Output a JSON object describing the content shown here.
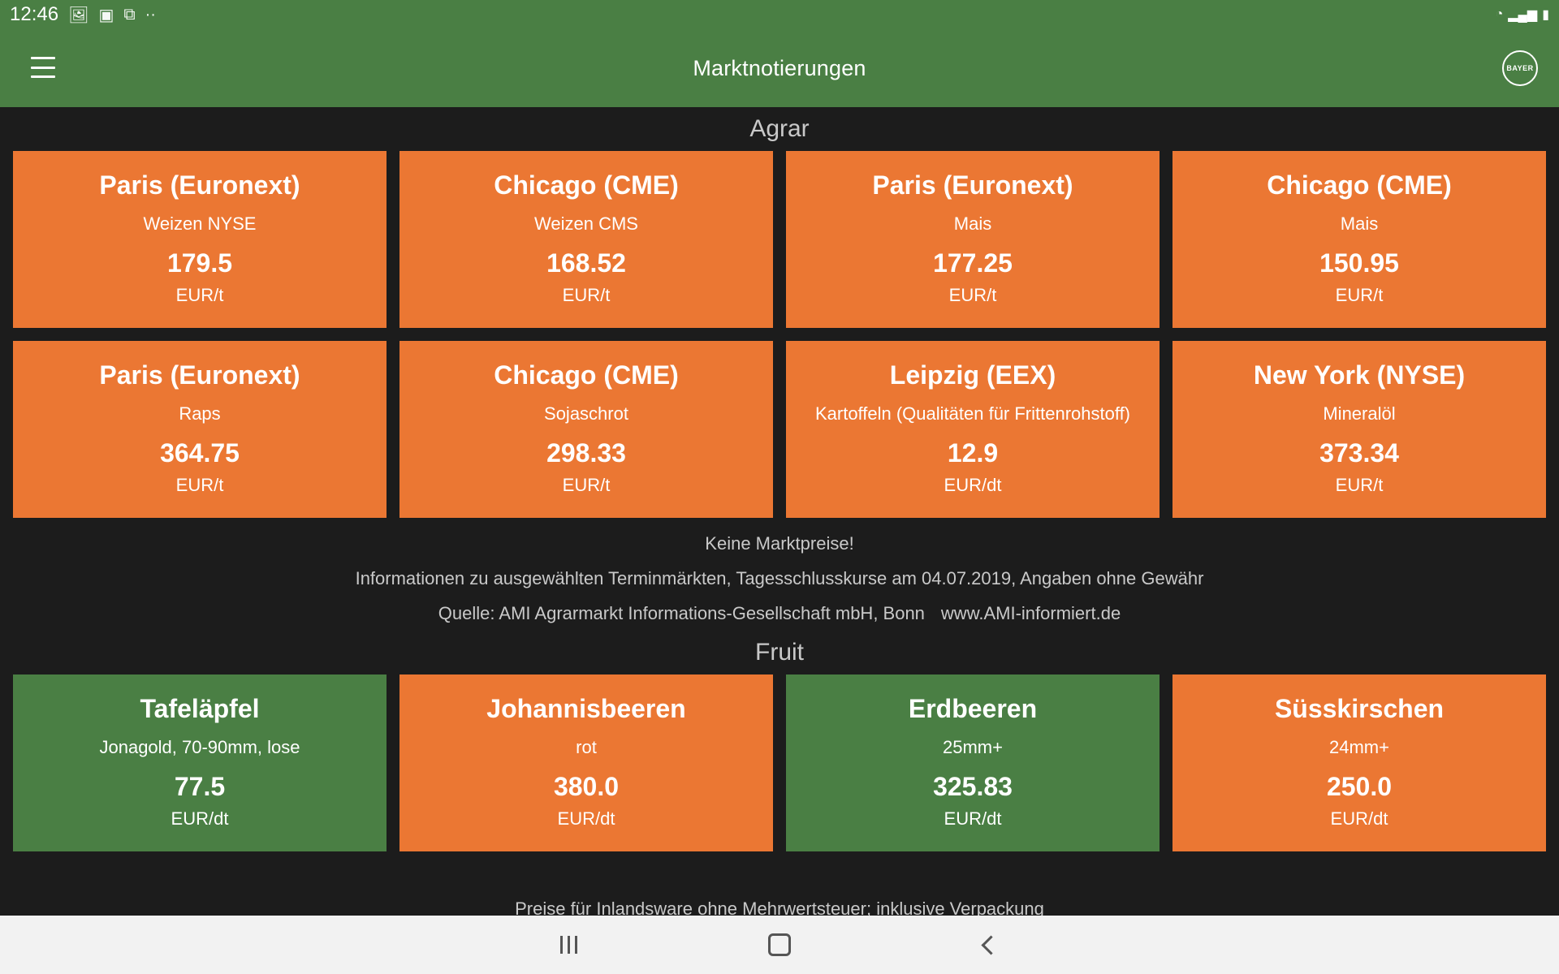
{
  "status_bar": {
    "time": "12:46",
    "icons": [
      "image-icon",
      "photo-icon",
      "screenshot-icon",
      "more-dots-icon"
    ],
    "right_icons": [
      "wifi-icon",
      "signal-icon",
      "battery-icon"
    ]
  },
  "toolbar": {
    "title": "Marktnotierungen",
    "logo_text": "BAYER"
  },
  "colors": {
    "green": "#4a7f44",
    "orange": "#eb7733",
    "background": "#1c1c1c"
  },
  "agrar": {
    "title": "Agrar",
    "cards": [
      {
        "market": "Paris (Euronext)",
        "product": "Weizen NYSE",
        "price": "179.5",
        "unit": "EUR/t",
        "color": "orange"
      },
      {
        "market": "Chicago (CME)",
        "product": "Weizen CMS",
        "price": "168.52",
        "unit": "EUR/t",
        "color": "orange"
      },
      {
        "market": "Paris (Euronext)",
        "product": "Mais",
        "price": "177.25",
        "unit": "EUR/t",
        "color": "orange"
      },
      {
        "market": "Chicago (CME)",
        "product": "Mais",
        "price": "150.95",
        "unit": "EUR/t",
        "color": "orange"
      },
      {
        "market": "Paris (Euronext)",
        "product": "Raps",
        "price": "364.75",
        "unit": "EUR/t",
        "color": "orange"
      },
      {
        "market": "Chicago (CME)",
        "product": "Sojaschrot",
        "price": "298.33",
        "unit": "EUR/t",
        "color": "orange"
      },
      {
        "market": "Leipzig (EEX)",
        "product": "Kartoffeln (Qualitäten für Frittenrohstoff)",
        "price": "12.9",
        "unit": "EUR/dt",
        "color": "orange"
      },
      {
        "market": "New York (NYSE)",
        "product": "Mineralöl",
        "price": "373.34",
        "unit": "EUR/t",
        "color": "orange"
      }
    ],
    "info_no_prices": "Keine Marktpreise!",
    "info_text": "Informationen zu ausgewählten Terminmärkten, Tagesschlusskurse am 04.07.2019, Angaben ohne Gewähr",
    "source_text": "Quelle: AMI Agrarmarkt Informations-Gesellschaft mbH, Bonn",
    "source_link": "www.AMI-informiert.de"
  },
  "fruit": {
    "title": "Fruit",
    "cards": [
      {
        "market": "Tafeläpfel",
        "product": "Jonagold, 70-90mm, lose",
        "price": "77.5",
        "unit": "EUR/dt",
        "color": "green"
      },
      {
        "market": "Johannisbeeren",
        "product": "rot",
        "price": "380.0",
        "unit": "EUR/dt",
        "color": "orange"
      },
      {
        "market": "Erdbeeren",
        "product": "25mm+",
        "price": "325.83",
        "unit": "EUR/dt",
        "color": "green"
      },
      {
        "market": "Süsskirschen",
        "product": "24mm+",
        "price": "250.0",
        "unit": "EUR/dt",
        "color": "orange"
      }
    ],
    "note": "Preise für Inlandsware ohne Mehrwertsteuer; inklusive Verpackung"
  },
  "nav_bar": {
    "buttons": [
      "recents-button",
      "home-button",
      "back-button"
    ]
  }
}
